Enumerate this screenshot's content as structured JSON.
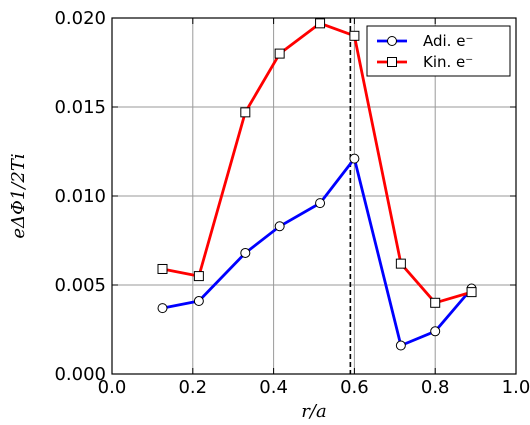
{
  "chart_data": {
    "type": "line",
    "xlabel": "r/a",
    "ylabel": "eΔΦ1/2Ti",
    "xlim": [
      0.0,
      1.0
    ],
    "ylim": [
      0.0,
      0.02
    ],
    "xticks": [
      "0.0",
      "0.2",
      "0.4",
      "0.6",
      "0.8",
      "1.0"
    ],
    "yticks": [
      "0.000",
      "0.005",
      "0.010",
      "0.015",
      "0.020"
    ],
    "grid": true,
    "legend_position": "top-right",
    "vline_x": 0.59,
    "series": [
      {
        "name": "Adi. e⁻",
        "color": "#0000ff",
        "marker": "circle",
        "x": [
          0.125,
          0.215,
          0.33,
          0.415,
          0.515,
          0.6,
          0.715,
          0.8,
          0.89
        ],
        "y": [
          0.0037,
          0.0041,
          0.0068,
          0.0083,
          0.0096,
          0.0121,
          0.0016,
          0.0024,
          0.0048
        ]
      },
      {
        "name": "Kin. e⁻",
        "color": "#ff0000",
        "marker": "square",
        "x": [
          0.125,
          0.215,
          0.33,
          0.415,
          0.515,
          0.6,
          0.715,
          0.8,
          0.89
        ],
        "y": [
          0.0059,
          0.0055,
          0.0147,
          0.018,
          0.0197,
          0.019,
          0.0062,
          0.004,
          0.0046
        ]
      }
    ]
  }
}
